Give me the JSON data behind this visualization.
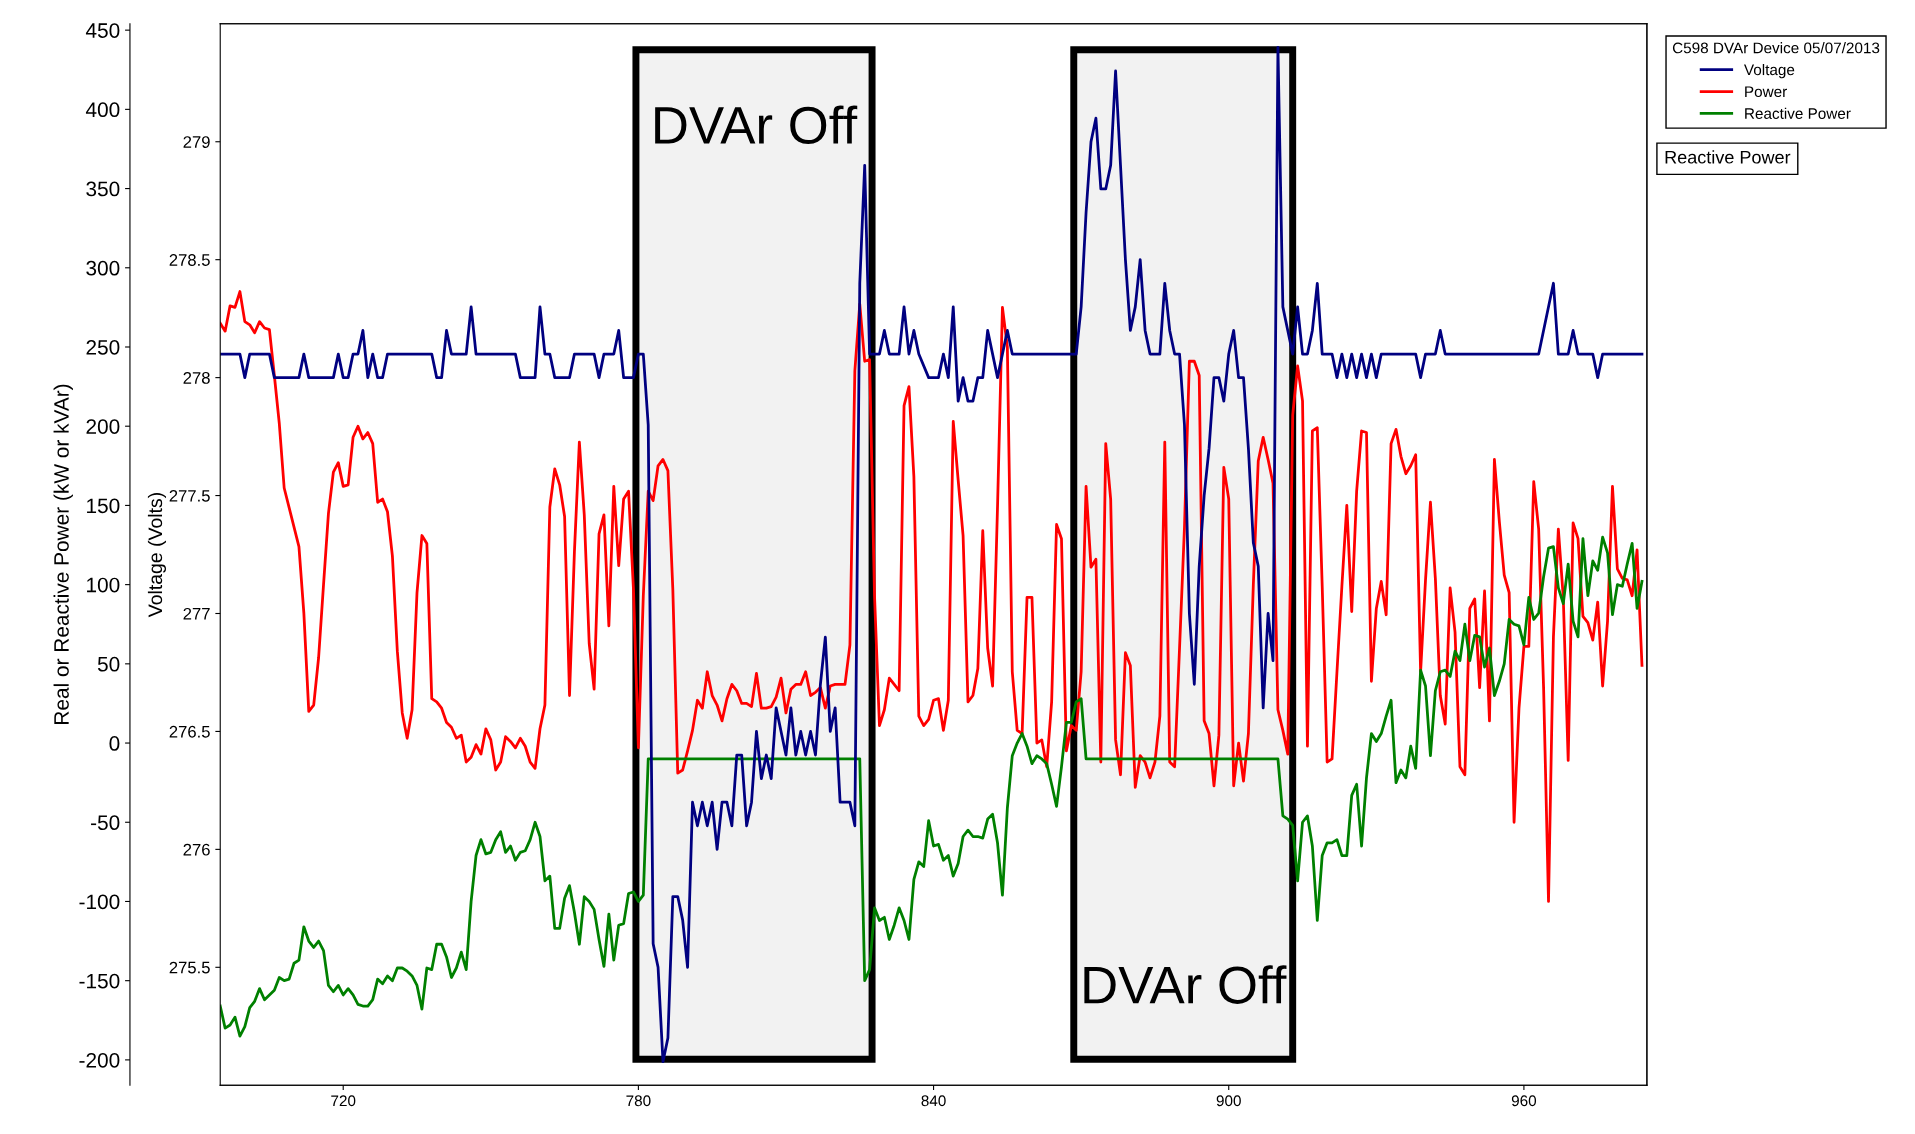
{
  "chart_data": {
    "type": "line",
    "ylabel": "Real or Reactive Power (kW or kVAr)",
    "y2label": "Voltage (Volts)",
    "legend_title": "C598 DVAr Device 05/07/2013",
    "legend": "top right",
    "grid": false,
    "marker": "none",
    "line_style": "solid",
    "xlim": [
      695,
      985
    ],
    "xticks": [
      720,
      780,
      840,
      900,
      960
    ],
    "ylim": [
      -216,
      454
    ],
    "yticks": [
      -200,
      -150,
      -100,
      -50,
      0,
      50,
      100,
      150,
      200,
      250,
      300,
      350,
      400,
      450
    ],
    "y2lim": [
      275,
      279.5
    ],
    "y2ticks": [
      275.5,
      276,
      276.5,
      277,
      277.5,
      278,
      278.5,
      279
    ],
    "series": [
      {
        "name": "Voltage",
        "color": "#000080",
        "axis": "y2",
        "x": [
          695,
          699,
          700,
          701,
          705,
          706,
          711,
          712,
          713,
          718,
          719,
          720,
          721,
          722,
          723,
          724,
          725,
          726,
          727,
          728,
          729,
          738,
          739,
          740,
          741,
          742,
          745,
          746,
          747,
          755,
          756,
          759,
          760,
          761,
          762,
          763,
          766,
          767,
          771,
          772,
          773,
          775,
          776,
          777,
          779,
          780,
          781,
          782,
          783,
          784,
          785,
          786,
          787,
          788,
          789,
          790,
          791,
          792,
          793,
          794,
          795,
          796,
          797,
          798,
          799,
          800,
          801,
          802,
          803,
          804,
          805,
          806,
          807,
          808,
          809,
          810,
          811,
          812,
          813,
          814,
          815,
          816,
          817,
          818,
          819,
          820,
          821,
          823,
          824,
          825,
          826,
          827,
          829,
          830,
          831,
          833,
          834,
          835,
          836,
          837,
          839,
          841,
          842,
          843,
          844,
          845,
          846,
          847,
          848,
          849,
          850,
          851,
          853,
          855,
          856,
          869,
          870,
          871,
          872,
          873,
          874,
          875,
          876,
          877,
          878,
          879,
          880,
          881,
          882,
          883,
          884,
          886,
          887,
          888,
          889,
          890,
          891,
          892,
          893,
          894,
          895,
          896,
          897,
          898,
          899,
          900,
          901,
          902,
          903,
          904,
          905,
          906,
          907,
          908,
          909,
          910,
          911,
          912,
          913,
          914,
          915,
          916,
          917,
          918,
          919,
          921,
          922,
          923,
          924,
          925,
          926,
          927,
          928,
          929,
          930,
          931,
          938,
          939,
          940,
          942,
          943,
          944,
          963,
          966,
          967,
          969,
          970,
          971,
          974,
          975,
          976,
          984
        ],
        "values": [
          278.1,
          278.1,
          278.0,
          278.1,
          278.1,
          278.0,
          278.0,
          278.1,
          278.0,
          278.0,
          278.1,
          278.0,
          278.0,
          278.1,
          278.1,
          278.2,
          278.0,
          278.1,
          278.0,
          278.0,
          278.1,
          278.1,
          278.0,
          278.0,
          278.2,
          278.1,
          278.1,
          278.3,
          278.1,
          278.1,
          278.0,
          278.0,
          278.3,
          278.1,
          278.1,
          278.0,
          278.0,
          278.1,
          278.1,
          278.0,
          278.1,
          278.1,
          278.2,
          278.0,
          278.0,
          278.1,
          278.1,
          277.8,
          275.6,
          275.5,
          275.1,
          275.2,
          275.8,
          275.8,
          275.7,
          275.5,
          276.2,
          276.1,
          276.2,
          276.1,
          276.2,
          276.0,
          276.2,
          276.2,
          276.1,
          276.4,
          276.4,
          276.1,
          276.2,
          276.5,
          276.3,
          276.4,
          276.3,
          276.6,
          276.5,
          276.4,
          276.6,
          276.4,
          276.5,
          276.4,
          276.5,
          276.4,
          276.7,
          276.9,
          276.5,
          276.6,
          276.2,
          276.2,
          276.1,
          278.4,
          278.9,
          278.1,
          278.1,
          278.2,
          278.1,
          278.1,
          278.3,
          278.1,
          278.2,
          278.1,
          278.0,
          278.0,
          278.1,
          278.0,
          278.3,
          277.9,
          278.0,
          277.9,
          277.9,
          278.0,
          278.0,
          278.2,
          278.0,
          278.2,
          278.1,
          278.1,
          278.3,
          278.7,
          279.0,
          279.1,
          278.8,
          278.8,
          278.9,
          279.3,
          278.9,
          278.5,
          278.2,
          278.3,
          278.5,
          278.2,
          278.1,
          278.1,
          278.4,
          278.2,
          278.1,
          278.1,
          277.8,
          277.0,
          276.7,
          277.2,
          277.5,
          277.7,
          278.0,
          278.0,
          277.9,
          278.1,
          278.2,
          278.0,
          278.0,
          277.7,
          277.3,
          277.2,
          276.6,
          277.0,
          276.8,
          279.4,
          278.3,
          278.2,
          278.1,
          278.3,
          278.1,
          278.1,
          278.2,
          278.4,
          278.1,
          278.1,
          278.0,
          278.1,
          278.0,
          278.1,
          278.0,
          278.1,
          278.0,
          278.1,
          278.0,
          278.1,
          278.1,
          278.0,
          278.1,
          278.1,
          278.2,
          278.1,
          278.1,
          278.4,
          278.1,
          278.1,
          278.2,
          278.1,
          278.1,
          278.0,
          278.1,
          278.1
        ]
      },
      {
        "name": "Power",
        "color": "#ff0000",
        "x": [
          695,
          696,
          697,
          698,
          699,
          700,
          701,
          702,
          703,
          704,
          705,
          706,
          707,
          708,
          711,
          712,
          713,
          714,
          715,
          716,
          717,
          718,
          719,
          720,
          721,
          722,
          723,
          724,
          725,
          726,
          727,
          728,
          729,
          730,
          731,
          732,
          733,
          734,
          735,
          736,
          737,
          738,
          739,
          740,
          741,
          742,
          743,
          744,
          745,
          746,
          747,
          748,
          749,
          750,
          751,
          752,
          753,
          754,
          755,
          756,
          757,
          758,
          759,
          760,
          761,
          762,
          763,
          764,
          765,
          766,
          767,
          768,
          769,
          770,
          771,
          772,
          773,
          774,
          775,
          776,
          777,
          778,
          779,
          780,
          781,
          782,
          783,
          784,
          785,
          786,
          787,
          788,
          789,
          790,
          791,
          792,
          793,
          794,
          795,
          796,
          797,
          798,
          799,
          800,
          801,
          802,
          803,
          804,
          805,
          806,
          807,
          808,
          809,
          810,
          811,
          812,
          813,
          814,
          815,
          816,
          817,
          818,
          819,
          820,
          821,
          822,
          823,
          824,
          825,
          826,
          827,
          828,
          829,
          830,
          831,
          832,
          833,
          834,
          835,
          836,
          837,
          838,
          839,
          840,
          841,
          842,
          843,
          844,
          845,
          846,
          847,
          848,
          849,
          850,
          851,
          852,
          853,
          854,
          855,
          856,
          857,
          858,
          859,
          860,
          861,
          862,
          863,
          864,
          865,
          866,
          867,
          868,
          869,
          870,
          871,
          872,
          873,
          874,
          875,
          876,
          877,
          878,
          879,
          880,
          881,
          882,
          883,
          884,
          885,
          886,
          887,
          888,
          889,
          890,
          891,
          892,
          893,
          894,
          895,
          896,
          897,
          898,
          899,
          900,
          901,
          902,
          903,
          904,
          905,
          906,
          907,
          908,
          909,
          910,
          911,
          912,
          913,
          914,
          915,
          916,
          917,
          918,
          919,
          920,
          921,
          922,
          923,
          924,
          925,
          926,
          927,
          928,
          929,
          930,
          931,
          932,
          933,
          934,
          935,
          936,
          937,
          938,
          939,
          940,
          941,
          942,
          943,
          944,
          945,
          946,
          947,
          948,
          949,
          950,
          951,
          952,
          953,
          954,
          955,
          956,
          957,
          958,
          959,
          960,
          961,
          962,
          963,
          964,
          965,
          966,
          967,
          968,
          969,
          970,
          971,
          972,
          973,
          974,
          975,
          976,
          977,
          978,
          979,
          980,
          981,
          982,
          983,
          984
        ],
        "values": [
          265,
          260,
          276,
          275,
          285,
          266,
          264,
          259,
          266,
          262,
          261,
          232,
          202,
          161,
          124,
          82,
          20,
          24,
          54,
          100,
          145,
          171,
          177,
          162,
          163,
          193,
          200,
          192,
          196,
          189,
          152,
          154,
          146,
          118,
          58,
          19,
          3,
          21,
          95,
          131,
          126,
          28,
          26,
          22,
          13,
          10,
          3,
          5,
          -12,
          -9,
          -1,
          -7,
          9,
          2,
          -17,
          -12,
          4,
          1,
          -3,
          3,
          -2,
          -12,
          -16,
          9,
          24,
          149,
          173,
          163,
          143,
          30,
          121,
          190,
          144,
          63,
          34,
          132,
          144,
          74,
          162,
          112,
          154,
          159,
          97,
          -3,
          93,
          159,
          153,
          175,
          179,
          172,
          97,
          -19,
          -17,
          -5,
          8,
          27,
          22,
          45,
          30,
          24,
          14,
          28,
          37,
          33,
          25,
          25,
          23,
          44,
          22,
          22,
          23,
          29,
          41,
          19,
          34,
          37,
          37,
          45,
          30,
          32,
          35,
          22,
          36,
          37,
          37,
          37,
          62,
          235,
          277,
          241,
          242,
          93,
          11,
          21,
          41,
          37,
          33,
          213,
          225,
          168,
          17,
          11,
          15,
          27,
          28,
          8,
          27,
          203,
          166,
          131,
          26,
          30,
          47,
          134,
          60,
          36,
          149,
          275,
          250,
          45,
          8,
          6,
          92,
          92,
          0,
          2,
          -15,
          26,
          138,
          129,
          -5,
          11,
          8,
          45,
          162,
          111,
          116,
          -12,
          189,
          154,
          2,
          -20,
          57,
          49,
          -28,
          -8,
          -12,
          -22,
          -12,
          17,
          190,
          -12,
          -15,
          60,
          136,
          241,
          241,
          232,
          14,
          6,
          -27,
          5,
          174,
          154,
          -27,
          0,
          -24,
          6,
          100,
          178,
          193,
          179,
          164,
          21,
          8,
          -7,
          207,
          238,
          216,
          -2,
          197,
          199,
          99,
          -12,
          -10,
          45,
          99,
          150,
          83,
          159,
          197,
          196,
          39,
          85,
          102,
          81,
          189,
          198,
          181,
          170,
          175,
          182,
          45,
          103,
          152,
          104,
          30,
          12,
          98,
          70,
          -15,
          -20,
          85,
          91,
          35,
          96,
          14,
          179,
          140,
          106,
          95,
          -50,
          22,
          61,
          61,
          165,
          135,
          35,
          -100,
          67,
          135,
          92,
          -11,
          139,
          129,
          80,
          76,
          65,
          89,
          36,
          77,
          162,
          110,
          104,
          103,
          93,
          122,
          49
        ]
      },
      {
        "name": "Reactive Power",
        "color": "#008000",
        "x": [
          695,
          696,
          697,
          698,
          699,
          700,
          701,
          702,
          703,
          704,
          705,
          706,
          707,
          708,
          709,
          710,
          711,
          712,
          713,
          714,
          715,
          716,
          717,
          718,
          719,
          720,
          721,
          722,
          723,
          724,
          725,
          726,
          727,
          728,
          729,
          730,
          731,
          732,
          733,
          734,
          735,
          736,
          737,
          738,
          739,
          740,
          741,
          742,
          743,
          744,
          745,
          746,
          747,
          748,
          749,
          750,
          751,
          752,
          753,
          754,
          755,
          756,
          757,
          758,
          759,
          760,
          761,
          762,
          763,
          764,
          765,
          766,
          767,
          768,
          769,
          770,
          771,
          772,
          773,
          774,
          775,
          776,
          777,
          778,
          779,
          780,
          781,
          782,
          825,
          826,
          827,
          828,
          829,
          830,
          831,
          832,
          833,
          834,
          835,
          836,
          837,
          838,
          839,
          840,
          841,
          842,
          843,
          844,
          845,
          846,
          847,
          848,
          849,
          850,
          851,
          852,
          853,
          854,
          855,
          856,
          857,
          858,
          859,
          860,
          861,
          862,
          863,
          864,
          865,
          866,
          867,
          868,
          869,
          870,
          871,
          910,
          911,
          912,
          913,
          914,
          915,
          916,
          917,
          918,
          919,
          920,
          921,
          922,
          923,
          924,
          925,
          926,
          927,
          928,
          929,
          930,
          931,
          932,
          933,
          934,
          935,
          936,
          937,
          938,
          939,
          940,
          941,
          942,
          943,
          944,
          945,
          946,
          947,
          948,
          949,
          950,
          951,
          952,
          953,
          954,
          955,
          956,
          957,
          958,
          959,
          960,
          961,
          962,
          963,
          964,
          965,
          966,
          967,
          968,
          969,
          970,
          971,
          972,
          973,
          974,
          975,
          976,
          977,
          978,
          979,
          980,
          981,
          982,
          983,
          984
        ],
        "values": [
          -166,
          -180,
          -178,
          -173,
          -185,
          -179,
          -167,
          -163,
          -155,
          -162,
          -159,
          -156,
          -148,
          -150,
          -149,
          -139,
          -137,
          -116,
          -125,
          -129,
          -125,
          -131,
          -153,
          -157,
          -153,
          -159,
          -155,
          -159,
          -165,
          -166,
          -166,
          -162,
          -149,
          -152,
          -147,
          -150,
          -142,
          -142,
          -144,
          -147,
          -153,
          -168,
          -142,
          -143,
          -127,
          -127,
          -135,
          -148,
          -142,
          -132,
          -143,
          -100,
          -71,
          -61,
          -70,
          -69,
          -61,
          -56,
          -69,
          -65,
          -74,
          -69,
          -68,
          -61,
          -50,
          -59,
          -87,
          -84,
          -117,
          -117,
          -98,
          -90,
          -107,
          -127,
          -97,
          -100,
          -105,
          -124,
          -141,
          -108,
          -137,
          -115,
          -114,
          -95,
          -94,
          -100,
          -96,
          -10,
          -10,
          -150,
          -143,
          -104,
          -112,
          -110,
          -124,
          -115,
          -104,
          -112,
          -124,
          -86,
          -75,
          -78,
          -49,
          -65,
          -64,
          -74,
          -71,
          -84,
          -76,
          -59,
          -55,
          -59,
          -59,
          -60,
          -48,
          -45,
          -63,
          -96,
          -41,
          -8,
          0,
          6,
          -2,
          -13,
          -8,
          -10,
          -13,
          -26,
          -40,
          -15,
          13,
          13,
          26,
          28,
          -10,
          -10,
          -46,
          -48,
          -52,
          -87,
          -50,
          -46,
          -65,
          -112,
          -71,
          -63,
          -63,
          -61,
          -71,
          -71,
          -33,
          -26,
          -65,
          -22,
          6,
          1,
          6,
          17,
          27,
          -25,
          -17,
          -22,
          -2,
          -16,
          46,
          36,
          -8,
          33,
          45,
          46,
          42,
          58,
          52,
          75,
          52,
          68,
          67,
          48,
          60,
          30,
          39,
          50,
          78,
          75,
          74,
          62,
          92,
          78,
          82,
          105,
          123,
          124,
          98,
          88,
          113,
          77,
          67,
          129,
          93,
          115,
          109,
          130,
          120,
          81,
          100,
          99,
          113,
          126,
          85,
          102
        ]
      }
    ],
    "bands": [
      {
        "axis": "x",
        "from": 779.5,
        "to": 827.5,
        "label": "DVAr Off",
        "color": "#000000"
      },
      {
        "axis": "x",
        "from": 868.5,
        "to": 913,
        "label": "DVAr Off",
        "color": "#000000"
      }
    ],
    "annotations": [
      "Reactive Power"
    ]
  }
}
